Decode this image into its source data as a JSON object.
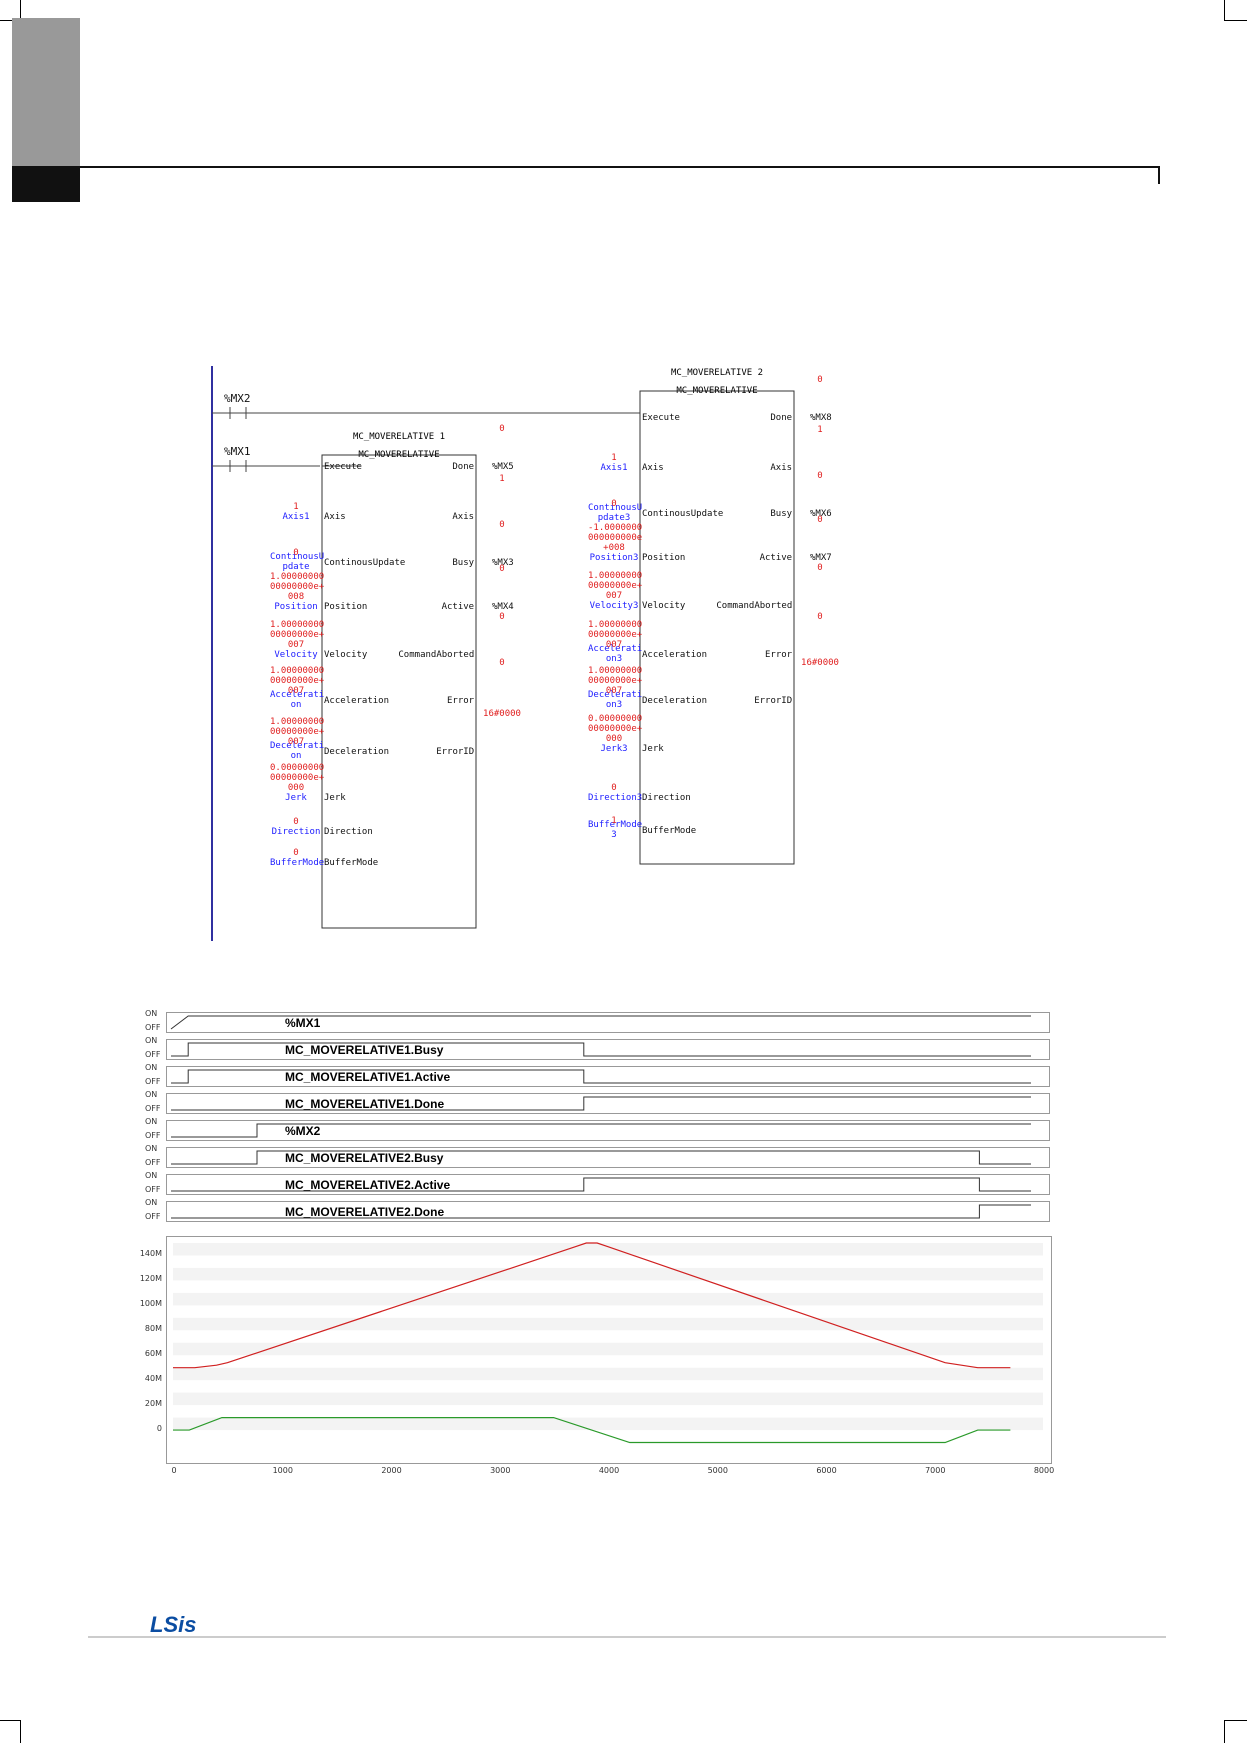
{
  "ladder": {
    "fb1": {
      "instance": "MC_MOVERELATIVE 1",
      "type": "MC_MOVERELATIVE",
      "contact": "%MX1",
      "inputs": [
        {
          "pin": "Execute",
          "var": "",
          "value": ""
        },
        {
          "pin": "Axis",
          "var": "Axis1",
          "value": "1"
        },
        {
          "pin": "ContinousUpdate",
          "var": "ContinousU\npdate",
          "value": "0"
        },
        {
          "pin": "Position",
          "var": "Position",
          "value": "1.00000000\n00000000e+\n008"
        },
        {
          "pin": "Velocity",
          "var": "Velocity",
          "value": "1.00000000\n00000000e+\n007"
        },
        {
          "pin": "Acceleration",
          "var": "Accelerati\non",
          "value": "1.00000000\n00000000e+\n007"
        },
        {
          "pin": "Deceleration",
          "var": "Decelerati\non",
          "value": "1.00000000\n00000000e+\n007"
        },
        {
          "pin": "Jerk",
          "var": "Jerk",
          "value": "0.00000000\n00000000e+\n000"
        },
        {
          "pin": "Direction",
          "var": "Direction",
          "value": "0"
        },
        {
          "pin": "BufferMode",
          "var": "BufferMode",
          "value": "0"
        }
      ],
      "outputs": [
        {
          "pin": "Done",
          "var": "%MX5",
          "value": "0"
        },
        {
          "pin": "Axis",
          "var": "",
          "value": "1"
        },
        {
          "pin": "Busy",
          "var": "%MX3",
          "value": "0"
        },
        {
          "pin": "Active",
          "var": "%MX4",
          "value": "0"
        },
        {
          "pin": "CommandAborted",
          "var": "",
          "value": "0"
        },
        {
          "pin": "Error",
          "var": "",
          "value": "0"
        },
        {
          "pin": "ErrorID",
          "var": "",
          "value": "16#0000"
        }
      ]
    },
    "fb2": {
      "instance": "MC_MOVERELATIVE 2",
      "type": "MC_MOVERELATIVE",
      "contact": "%MX2",
      "inputs": [
        {
          "pin": "Execute",
          "var": "",
          "value": ""
        },
        {
          "pin": "Axis",
          "var": "Axis1",
          "value": "1"
        },
        {
          "pin": "ContinousUpdate",
          "var": "ContinousU\npdate3",
          "value": "0"
        },
        {
          "pin": "Position",
          "var": "Position3",
          "value": "-1.0000000\n000000000e\n+008"
        },
        {
          "pin": "Velocity",
          "var": "Velocity3",
          "value": "1.00000000\n00000000e+\n007"
        },
        {
          "pin": "Acceleration",
          "var": "Accelerati\non3",
          "value": "1.00000000\n00000000e+\n007"
        },
        {
          "pin": "Deceleration",
          "var": "Decelerati\non3",
          "value": "1.00000000\n00000000e+\n007"
        },
        {
          "pin": "Jerk",
          "var": "Jerk3",
          "value": "0.00000000\n00000000e+\n000"
        },
        {
          "pin": "Direction",
          "var": "Direction3",
          "value": "0"
        },
        {
          "pin": "BufferMode",
          "var": "BufferMode\n3",
          "value": "1"
        }
      ],
      "outputs": [
        {
          "pin": "Done",
          "var": "%MX8",
          "value": "0"
        },
        {
          "pin": "Axis",
          "var": "",
          "value": "1"
        },
        {
          "pin": "Busy",
          "var": "%MX6",
          "value": "0"
        },
        {
          "pin": "Active",
          "var": "%MX7",
          "value": "0"
        },
        {
          "pin": "CommandAborted",
          "var": "",
          "value": "0"
        },
        {
          "pin": "Error",
          "var": "",
          "value": "0"
        },
        {
          "pin": "ErrorID",
          "var": "",
          "value": "16#0000"
        }
      ]
    }
  },
  "timing": {
    "on_label": "ON",
    "off_label": "OFF",
    "signals": [
      {
        "name": "%MX1",
        "edges": [
          [
            0,
            0
          ],
          [
            0.02,
            1
          ],
          [
            0.02,
            1
          ],
          [
            1.0,
            1
          ]
        ]
      },
      {
        "name": "MC_MOVERELATIVE1.Busy",
        "edges": [
          [
            0,
            0
          ],
          [
            0.02,
            0
          ],
          [
            0.02,
            1
          ],
          [
            0.48,
            1
          ],
          [
            0.48,
            0
          ],
          [
            1,
            0
          ]
        ]
      },
      {
        "name": "MC_MOVERELATIVE1.Active",
        "edges": [
          [
            0,
            0
          ],
          [
            0.02,
            0
          ],
          [
            0.02,
            1
          ],
          [
            0.48,
            1
          ],
          [
            0.48,
            0
          ],
          [
            1,
            0
          ]
        ]
      },
      {
        "name": "MC_MOVERELATIVE1.Done",
        "edges": [
          [
            0,
            0
          ],
          [
            0.48,
            0
          ],
          [
            0.48,
            1
          ],
          [
            1,
            1
          ]
        ]
      },
      {
        "name": "%MX2",
        "edges": [
          [
            0,
            0
          ],
          [
            0.1,
            0
          ],
          [
            0.1,
            1
          ],
          [
            1,
            1
          ]
        ]
      },
      {
        "name": "MC_MOVERELATIVE2.Busy",
        "edges": [
          [
            0,
            0
          ],
          [
            0.1,
            0
          ],
          [
            0.1,
            1
          ],
          [
            0.94,
            1
          ],
          [
            0.94,
            0
          ],
          [
            1,
            0
          ]
        ]
      },
      {
        "name": "MC_MOVERELATIVE2.Active",
        "edges": [
          [
            0,
            0
          ],
          [
            0.48,
            0
          ],
          [
            0.48,
            1
          ],
          [
            0.94,
            1
          ],
          [
            0.94,
            0
          ],
          [
            1,
            0
          ]
        ]
      },
      {
        "name": "MC_MOVERELATIVE2.Done",
        "edges": [
          [
            0,
            0
          ],
          [
            0.94,
            0
          ],
          [
            0.94,
            1
          ],
          [
            1,
            1
          ]
        ]
      }
    ]
  },
  "chart_data": {
    "type": "line",
    "title": "",
    "xlabel": "",
    "ylabel": "",
    "xlim": [
      0,
      8000
    ],
    "ylim": [
      -20,
      150
    ],
    "x_ticks": [
      "0",
      "1000",
      "2000",
      "3000",
      "4000",
      "5000",
      "6000",
      "7000",
      "8000"
    ],
    "y_ticks": [
      "0",
      "20M",
      "40M",
      "60M",
      "80M",
      "100M",
      "120M",
      "140M"
    ],
    "y_tick_values": [
      0,
      20,
      40,
      60,
      80,
      100,
      120,
      140
    ],
    "series": [
      {
        "color": "#d02020",
        "x": [
          0,
          200,
          400,
          500,
          3700,
          3800,
          3900,
          4000,
          7100,
          7400,
          7500,
          7700
        ],
        "y": [
          50,
          50,
          52,
          54,
          147,
          150,
          150,
          147,
          54,
          50,
          50,
          50
        ]
      },
      {
        "color": "#2a9a2a",
        "x": [
          0,
          150,
          450,
          3500,
          4200,
          7100,
          7400,
          7700
        ],
        "y": [
          0,
          0,
          10,
          10,
          -10,
          -10,
          0,
          0
        ]
      }
    ]
  },
  "footer": {
    "logo": "LSis"
  }
}
